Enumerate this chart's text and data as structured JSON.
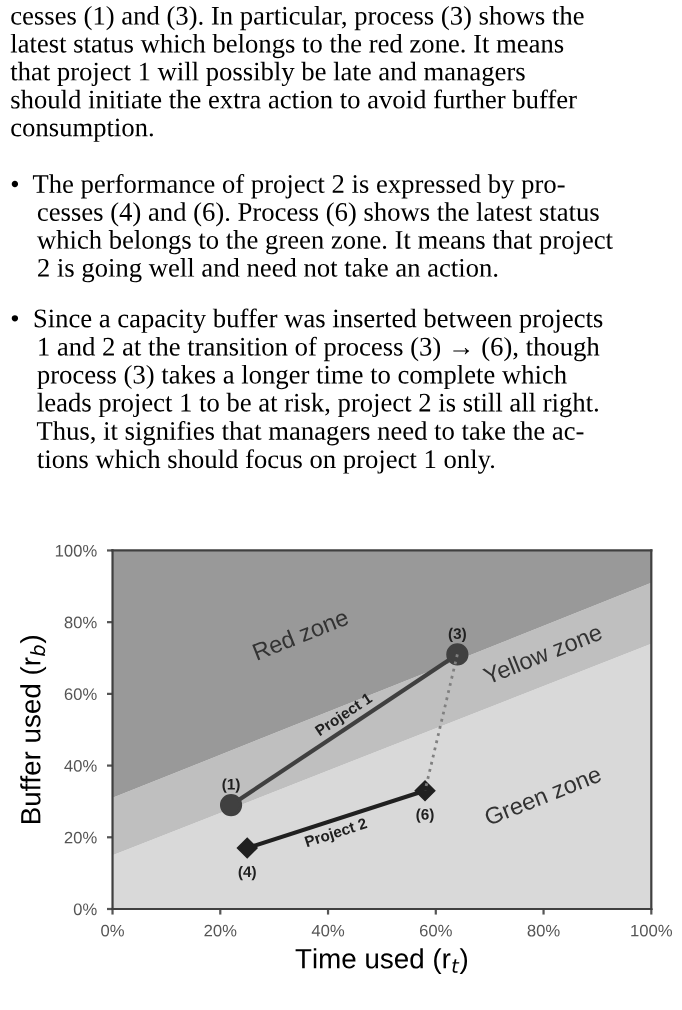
{
  "chart_data": {
    "type": "line",
    "xlabel": "Time used (r$_{t}$)",
    "ylabel": "Buffer used (r$_{b}$)",
    "stacked": true,
    "legend": false,
    "grid": false,
    "xlim": [
      0,
      100
    ],
    "ylim": [
      0,
      100
    ],
    "xticks": [
      {
        "value": 0,
        "label": "0%"
      },
      {
        "value": 20,
        "label": "20%"
      },
      {
        "value": 40,
        "label": "40%"
      },
      {
        "value": 60,
        "label": "60%"
      },
      {
        "value": 80,
        "label": "80%"
      },
      {
        "value": 100,
        "label": "100%"
      }
    ],
    "yticks": [
      {
        "value": 0,
        "label": "0%"
      },
      {
        "value": 20,
        "label": "20%"
      },
      {
        "value": 40,
        "label": "40%"
      },
      {
        "value": 60,
        "label": "60%"
      },
      {
        "value": 80,
        "label": "80%"
      },
      {
        "value": 100,
        "label": "100%"
      }
    ],
    "series": [
      {
        "type": "area",
        "name": "Green zone",
        "color": "#d9d9d9",
        "x": [
          0,
          100
        ],
        "values": [
          15,
          74
        ]
      },
      {
        "type": "area",
        "name": "Yellow zone",
        "color": "#bfbfbf",
        "x": [
          0,
          100
        ],
        "values": [
          16,
          17
        ]
      },
      {
        "type": "area",
        "name": "Red zone",
        "color": "#999999",
        "x": [
          0,
          100
        ],
        "values": [
          69,
          9
        ]
      },
      {
        "name": "Project 1",
        "color": "#404040",
        "marker": "circle",
        "x": [
          22,
          64
        ],
        "values": [
          29,
          71
        ]
      },
      {
        "name": "Project 2",
        "color": "#202020",
        "marker": "diamond",
        "x": [
          25,
          58
        ],
        "values": [
          17,
          33
        ]
      },
      {
        "color": "#808080",
        "line_style": "dotted",
        "marker": "none",
        "x": [
          64,
          58
        ],
        "values": [
          71,
          33
        ]
      }
    ],
    "annotations": [
      "cesses (1) and (3). In particular, process (3) shows the\nlatest status which belongs to the red zone. It means\nthat project 1 will possibly be late and managers\nshould initiate the extra action to avoid further buffer\nconsumption.",
      "•  The performance of project 2 is expressed by pro-\n    cesses (4) and (6). Process (6) shows the latest status\n    which belongs to the green zone. It means that project\n    2 is going well and need not take an action.",
      "•  Since a capacity buffer was inserted between projects\n    1 and 2 at the transition of process (3) → (6), though\n    process (3) takes a longer time to complete which\n    leads project 1 to be at risk, project 2 is still all right.\n    Thus, it signifies that managers need to take the ac-\n    tions which should focus on project 1 only.",
      {
        "text": "(1)",
        "x": 22,
        "y": 29
      },
      {
        "text": "(3)",
        "x": 64,
        "y": 71
      },
      {
        "text": "(4)",
        "x": 25,
        "y": 17
      },
      {
        "text": "(6)",
        "x": 58,
        "y": 33
      }
    ]
  }
}
